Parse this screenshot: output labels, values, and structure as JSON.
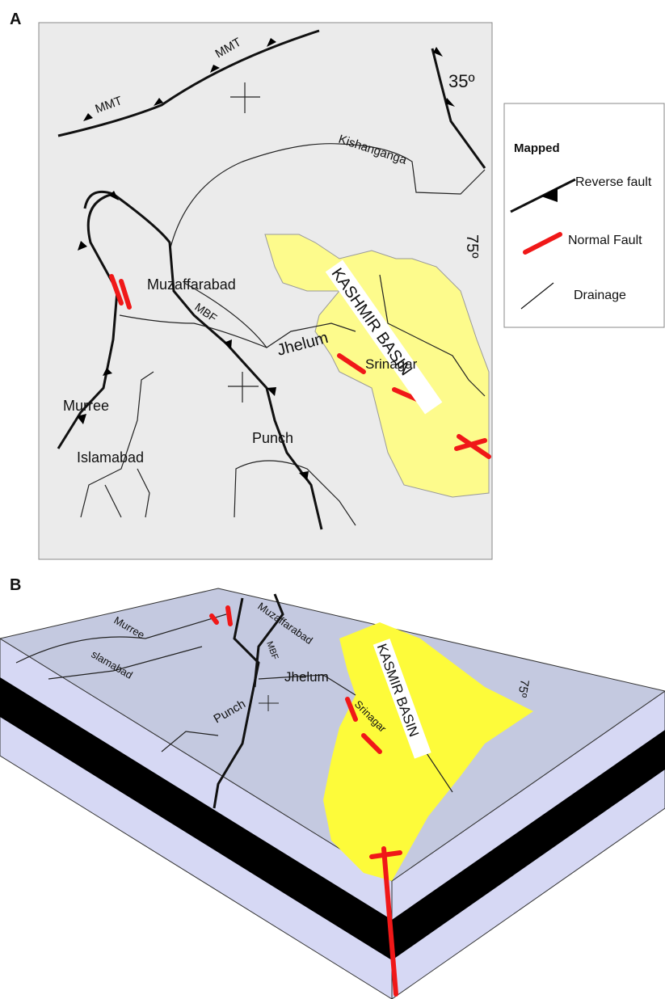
{
  "panel_a": {
    "label": "A",
    "labels": [
      "MMT",
      "MMT",
      "35º",
      "Kishanganga",
      "75º",
      "Muzaffarabad",
      "MBF",
      "Jhelum",
      "KASHMIR BASIN",
      "Srinagar",
      "Murree",
      "Islamabad",
      "Punch"
    ]
  },
  "legend": {
    "title": "Mapped",
    "items": [
      "Reverse fault",
      "Normal Fault",
      "Drainage"
    ]
  },
  "panel_b": {
    "label": "B",
    "labels": [
      "Muzaffarabad",
      "Murree",
      "slamabad",
      "MBF",
      "Jhelum",
      "KASMIR BASIN",
      "Srinagar",
      "Punch",
      "75º"
    ]
  }
}
